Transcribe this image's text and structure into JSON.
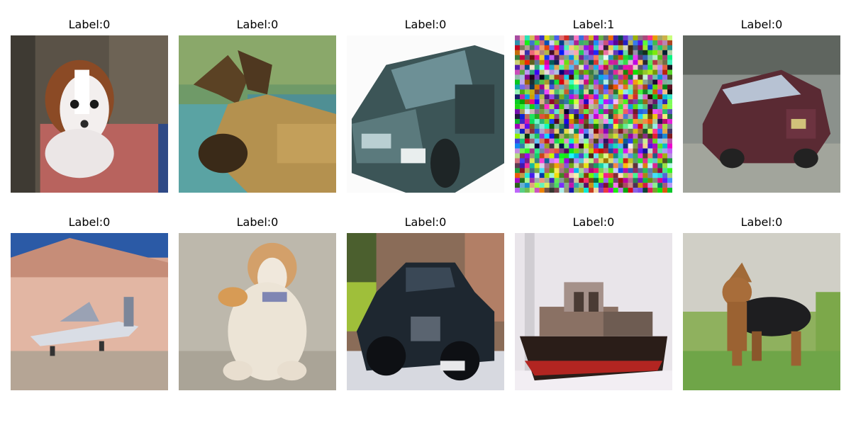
{
  "grid": {
    "cells": [
      {
        "label": "Label:0",
        "subject": "dog"
      },
      {
        "label": "Label:0",
        "subject": "moose"
      },
      {
        "label": "Label:0",
        "subject": "car"
      },
      {
        "label": "Label:1",
        "subject": "noise"
      },
      {
        "label": "Label:0",
        "subject": "car"
      },
      {
        "label": "Label:0",
        "subject": "airplane"
      },
      {
        "label": "Label:0",
        "subject": "cat"
      },
      {
        "label": "Label:0",
        "subject": "car"
      },
      {
        "label": "Label:0",
        "subject": "ship"
      },
      {
        "label": "Label:0",
        "subject": "dog"
      }
    ]
  }
}
